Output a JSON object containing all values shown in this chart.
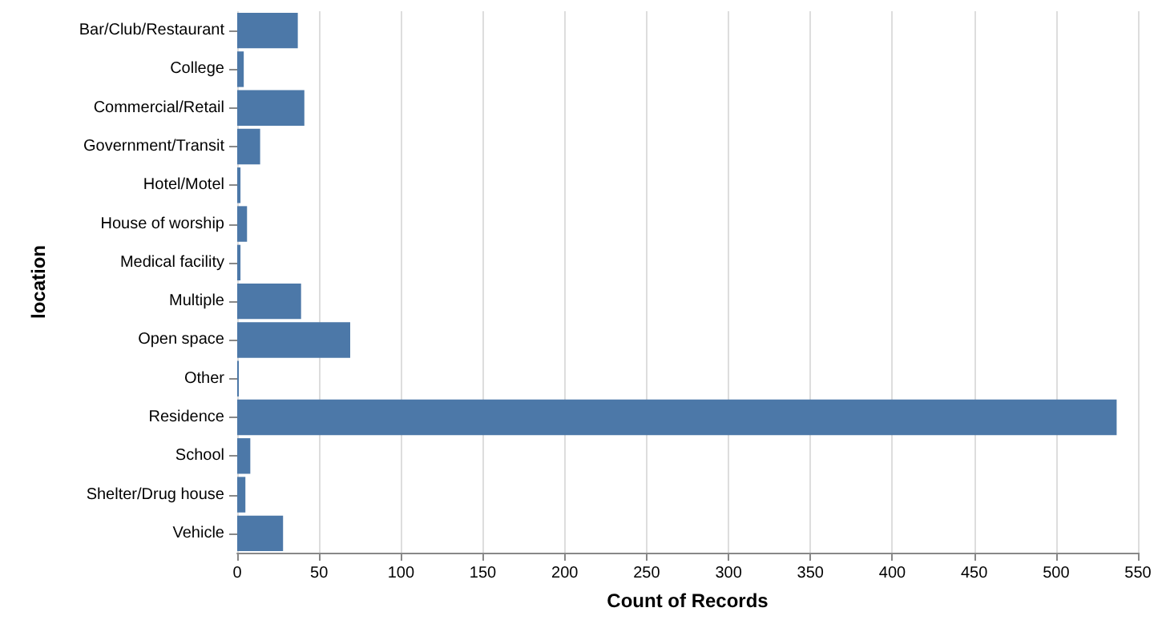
{
  "chart_data": {
    "type": "bar",
    "orientation": "horizontal",
    "xlabel": "Count of Records",
    "ylabel": "location",
    "categories": [
      "Bar/Club/Restaurant",
      "College",
      "Commercial/Retail",
      "Government/Transit",
      "Hotel/Motel",
      "House of worship",
      "Medical facility",
      "Multiple",
      "Open space",
      "Other",
      "Residence",
      "School",
      "Shelter/Drug house",
      "Vehicle"
    ],
    "values": [
      37,
      4,
      41,
      14,
      2,
      6,
      2,
      39,
      69,
      1,
      537,
      8,
      5,
      28
    ],
    "color": "#4c78a8",
    "xlim": [
      0,
      550
    ],
    "xticks": [
      0,
      50,
      100,
      150,
      200,
      250,
      300,
      350,
      400,
      450,
      500,
      550
    ],
    "grid": "x"
  }
}
